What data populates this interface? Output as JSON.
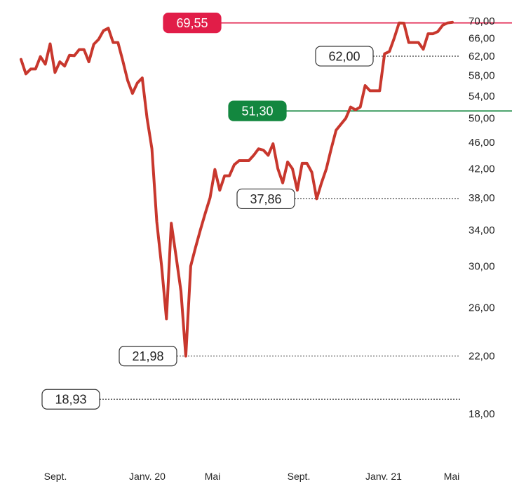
{
  "chart_data": {
    "type": "line",
    "title": "",
    "xlabel": "",
    "ylabel": "",
    "scale": "log",
    "y_ticks": [
      "70,00",
      "66,00",
      "62,00",
      "58,00",
      "54,00",
      "50,00",
      "46,00",
      "42,00",
      "38,00",
      "34,00",
      "30,00",
      "26,00",
      "22,00",
      "18,00"
    ],
    "y_tick_values": [
      70,
      66,
      62,
      58,
      54,
      50,
      46,
      42,
      38,
      34,
      30,
      26,
      22,
      18
    ],
    "x_ticks": [
      "Sept.",
      "Janv. 20",
      "Mai",
      "Sept.",
      "Janv. 21",
      "Mai"
    ],
    "ylim": [
      16.5,
      71
    ],
    "series": [
      {
        "color": "#c8372d",
        "values": [
          61.3,
          58.3,
          59.3,
          59.3,
          61.9,
          60.3,
          64.7,
          58.6,
          60.8,
          59.9,
          62.2,
          62.1,
          63.4,
          63.4,
          60.8,
          64.6,
          65.7,
          67.7,
          68.3,
          65.0,
          65.0,
          61.0,
          57.0,
          54.5,
          56.5,
          57.5,
          50.0,
          45.0,
          35.0,
          30.0,
          25.0,
          34.8,
          31.0,
          27.5,
          21.98,
          30.0,
          32.0,
          34.0,
          36.0,
          38.0,
          41.9,
          39.0,
          41.0,
          41.0,
          42.6,
          43.2,
          43.2,
          43.2,
          44.0,
          45.0,
          44.8,
          44.0,
          45.8,
          42.0,
          40.0,
          43.0,
          42.0,
          39.0,
          42.8,
          42.8,
          41.5,
          37.86,
          40.0,
          42.0,
          45.0,
          48.0,
          49.0,
          50.0,
          52.0,
          51.5,
          52.0,
          56.0,
          55.0,
          55.0,
          55.0,
          62.5,
          63.0,
          66.0,
          69.55,
          69.5,
          65.0,
          65.0,
          65.0,
          63.5,
          67.0,
          67.0,
          67.5,
          69.0,
          69.55,
          69.7
        ]
      }
    ],
    "annotations": [
      {
        "label": "69,55",
        "value": 69.55,
        "style": "red",
        "line": "solid",
        "color": "#e11d48"
      },
      {
        "label": "62,00",
        "value": 62.0,
        "style": "outline",
        "line": "dotted"
      },
      {
        "label": "51,30",
        "value": 51.3,
        "style": "green",
        "line": "solid",
        "color": "#13873f"
      },
      {
        "label": "37,86",
        "value": 37.86,
        "style": "outline",
        "line": "dotted"
      },
      {
        "label": "21,98",
        "value": 21.98,
        "style": "outline",
        "line": "dotted"
      },
      {
        "label": "18,93",
        "value": 18.93,
        "style": "outline",
        "line": "dotted"
      }
    ]
  }
}
